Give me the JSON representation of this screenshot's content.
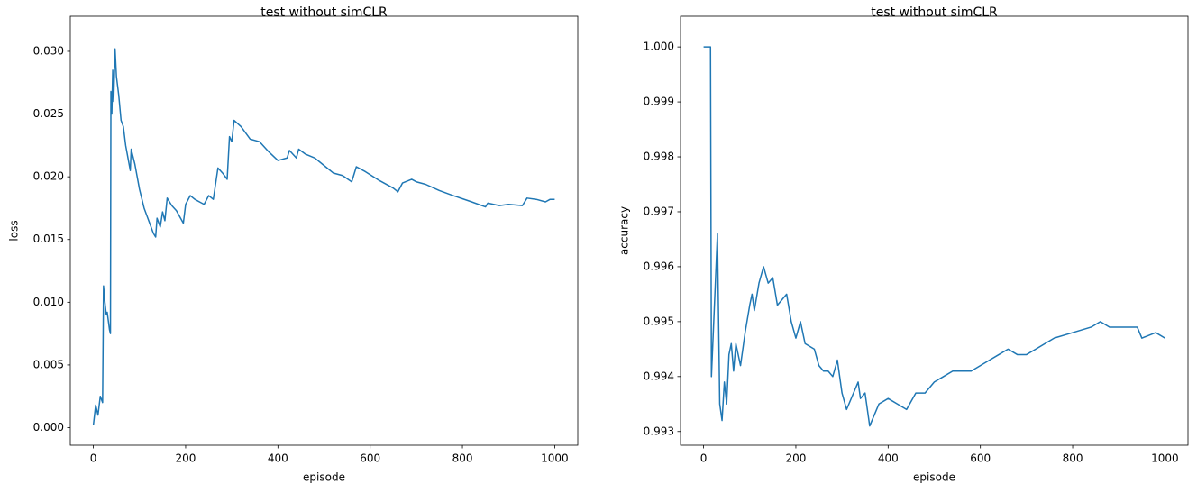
{
  "chart_data": [
    {
      "type": "line",
      "title": "test without simCLR",
      "xlabel": "episode",
      "ylabel": "loss",
      "x": [
        0,
        5,
        10,
        15,
        20,
        22,
        25,
        28,
        30,
        35,
        37,
        38,
        40,
        42,
        44,
        47,
        50,
        55,
        60,
        65,
        70,
        80,
        82,
        90,
        100,
        110,
        120,
        130,
        135,
        138,
        145,
        150,
        155,
        160,
        170,
        180,
        195,
        200,
        210,
        220,
        230,
        240,
        250,
        260,
        270,
        280,
        290,
        295,
        300,
        305,
        320,
        340,
        360,
        380,
        400,
        420,
        425,
        440,
        445,
        460,
        480,
        500,
        520,
        540,
        560,
        570,
        590,
        620,
        650,
        660,
        670,
        690,
        700,
        720,
        750,
        780,
        820,
        850,
        855,
        880,
        900,
        930,
        940,
        960,
        980,
        990,
        1000
      ],
      "series": [
        {
          "name": "loss",
          "color": "#1f77b4",
          "values": [
            0.0002,
            0.0018,
            0.001,
            0.0025,
            0.002,
            0.0113,
            0.01,
            0.009,
            0.0092,
            0.0078,
            0.0075,
            0.0268,
            0.025,
            0.0285,
            0.026,
            0.0302,
            0.028,
            0.0265,
            0.0245,
            0.024,
            0.0225,
            0.0205,
            0.0222,
            0.021,
            0.019,
            0.0175,
            0.0165,
            0.0155,
            0.0152,
            0.0167,
            0.016,
            0.0172,
            0.0165,
            0.0183,
            0.0177,
            0.0173,
            0.0163,
            0.0178,
            0.0185,
            0.0182,
            0.018,
            0.0178,
            0.0185,
            0.0182,
            0.0207,
            0.0203,
            0.0198,
            0.0232,
            0.0228,
            0.0245,
            0.024,
            0.023,
            0.0228,
            0.022,
            0.0213,
            0.0215,
            0.0221,
            0.0215,
            0.0222,
            0.0218,
            0.0215,
            0.0209,
            0.0203,
            0.0201,
            0.0196,
            0.0208,
            0.0204,
            0.0197,
            0.0191,
            0.0188,
            0.0195,
            0.0198,
            0.0196,
            0.0194,
            0.0189,
            0.0185,
            0.018,
            0.0176,
            0.0179,
            0.0177,
            0.0178,
            0.0177,
            0.0183,
            0.0182,
            0.018,
            0.0182,
            0.0182
          ]
        }
      ],
      "xlim": [
        -50,
        1050
      ],
      "xticks": [
        0,
        200,
        400,
        600,
        800,
        1000
      ],
      "ylim": [
        -0.0014,
        0.0328
      ],
      "yticks": [
        {
          "value": 0,
          "label": "0.000"
        },
        0.005,
        {
          "value": 0.01,
          "label": "0.010"
        },
        0.015,
        {
          "value": 0.02,
          "label": "0.020"
        },
        0.025,
        {
          "value": 0.03,
          "label": "0.030"
        }
      ],
      "grid": false
    },
    {
      "type": "line",
      "title": "test without simCLR",
      "xlabel": "episode",
      "ylabel": "accuracy",
      "x": [
        0,
        15,
        17,
        30,
        35,
        40,
        45,
        50,
        55,
        60,
        65,
        70,
        80,
        90,
        100,
        105,
        110,
        120,
        130,
        140,
        150,
        160,
        170,
        180,
        190,
        200,
        210,
        220,
        240,
        250,
        260,
        270,
        280,
        290,
        300,
        310,
        335,
        340,
        350,
        360,
        380,
        400,
        420,
        440,
        460,
        480,
        500,
        520,
        540,
        560,
        580,
        600,
        620,
        640,
        660,
        680,
        700,
        720,
        760,
        800,
        840,
        860,
        880,
        920,
        940,
        950,
        980,
        1000
      ],
      "series": [
        {
          "name": "accuracy",
          "color": "#1f77b4",
          "values": [
            1.0,
            1.0,
            0.994,
            0.9966,
            0.9935,
            0.9932,
            0.9939,
            0.9935,
            0.9944,
            0.9946,
            0.9941,
            0.9946,
            0.9942,
            0.9948,
            0.9953,
            0.9955,
            0.9952,
            0.9957,
            0.996,
            0.9957,
            0.9958,
            0.9953,
            0.9954,
            0.9955,
            0.995,
            0.9947,
            0.995,
            0.9946,
            0.9945,
            0.9942,
            0.9941,
            0.9941,
            0.994,
            0.9943,
            0.9937,
            0.9934,
            0.9939,
            0.9936,
            0.9937,
            0.9931,
            0.9935,
            0.9936,
            0.9935,
            0.9934,
            0.9937,
            0.9937,
            0.9939,
            0.994,
            0.9941,
            0.9941,
            0.9941,
            0.9942,
            0.9943,
            0.9944,
            0.9945,
            0.9944,
            0.9944,
            0.9945,
            0.9947,
            0.9948,
            0.9949,
            0.995,
            0.9949,
            0.9949,
            0.9949,
            0.9947,
            0.9948,
            0.9947
          ]
        }
      ],
      "xlim": [
        -50,
        1050
      ],
      "xticks": [
        0,
        200,
        400,
        600,
        800,
        1000
      ],
      "ylim": [
        0.99275,
        1.00056
      ],
      "yticks": [
        0.993,
        0.994,
        0.995,
        0.996,
        0.997,
        0.998,
        0.999,
        {
          "value": 1,
          "label": "1.000"
        }
      ],
      "grid": false
    }
  ]
}
